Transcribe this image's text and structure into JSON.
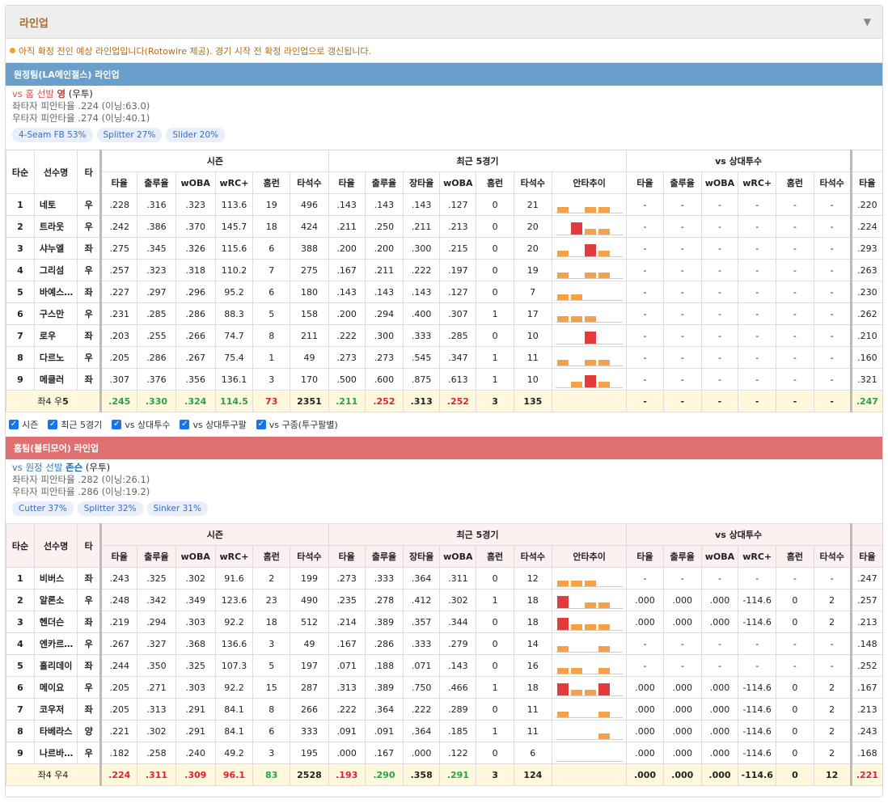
{
  "header": {
    "title": "라인업",
    "caret": "▼"
  },
  "notice": "아직 확정 전인 예상 라인업입니다(Rotowire 제공). 경기 시작 전 확정 라인업으로 갱신됩니다.",
  "columns": {
    "order": "타순",
    "name": "선수명",
    "hand": "타",
    "groups": [
      "시즌",
      "최근 5경기",
      "vs 상대투수"
    ],
    "season": [
      "타율",
      "출루율",
      "wOBA",
      "wRC+",
      "홈런",
      "타석수"
    ],
    "recent": [
      "타율",
      "출루율",
      "장타율",
      "wOBA",
      "홈런",
      "타석수",
      "안타추이"
    ],
    "vs": [
      "타율",
      "출루율",
      "wOBA",
      "wRC+",
      "홈런",
      "타석수"
    ],
    "extra": "타율"
  },
  "away": {
    "bar": "원정팀(LA에인절스) 라인업",
    "vs_label": "vs 홈 선발",
    "pitcher": "영",
    "pitcher_hand": "(우투)",
    "lhb": "좌타자 피안타율 .224 (이닝:63.0)",
    "rhb": "우타자 피안타율 .274 (이닝:40.1)",
    "pitches": [
      "4-Seam FB 53%",
      "Splitter 27%",
      "Slider 20%"
    ],
    "rows": [
      {
        "o": "1",
        "n": "네토",
        "h": "우",
        "s": [
          ".228",
          ".316",
          ".323",
          "113.6",
          "19",
          "496"
        ],
        "r": [
          ".143",
          ".143",
          ".143",
          ".127",
          "0",
          "21"
        ],
        "t": [
          "o",
          "",
          "o",
          "o"
        ],
        "v": [
          "-",
          "-",
          "-",
          "-",
          "-",
          "-"
        ],
        "x": ".220"
      },
      {
        "o": "2",
        "n": "트라웃",
        "h": "우",
        "s": [
          ".242",
          ".386",
          ".370",
          "145.7",
          "18",
          "424"
        ],
        "r": [
          ".211",
          ".250",
          ".211",
          ".213",
          "0",
          "20"
        ],
        "t": [
          "",
          "r",
          "o",
          "o"
        ],
        "v": [
          "-",
          "-",
          "-",
          "-",
          "-",
          "-"
        ],
        "x": ".224"
      },
      {
        "o": "3",
        "n": "샤누엘",
        "h": "좌",
        "s": [
          ".275",
          ".345",
          ".326",
          "115.6",
          "6",
          "388"
        ],
        "r": [
          ".200",
          ".200",
          ".300",
          ".215",
          "0",
          "20"
        ],
        "t": [
          "o",
          "",
          "r",
          "o"
        ],
        "v": [
          "-",
          "-",
          "-",
          "-",
          "-",
          "-"
        ],
        "x": ".293"
      },
      {
        "o": "4",
        "n": "그리섬",
        "h": "우",
        "s": [
          ".257",
          ".323",
          ".318",
          "110.2",
          "7",
          "275"
        ],
        "r": [
          ".167",
          ".211",
          ".222",
          ".197",
          "0",
          "19"
        ],
        "t": [
          "o",
          "",
          "o",
          "o"
        ],
        "v": [
          "-",
          "-",
          "-",
          "-",
          "-",
          "-"
        ],
        "x": ".263"
      },
      {
        "o": "5",
        "n": "바예스테로스",
        "h": "좌",
        "s": [
          ".227",
          ".297",
          ".296",
          "95.2",
          "6",
          "180"
        ],
        "r": [
          ".143",
          ".143",
          ".143",
          ".127",
          "0",
          "7"
        ],
        "t": [
          "o",
          "o",
          "",
          ""
        ],
        "v": [
          "-",
          "-",
          "-",
          "-",
          "-",
          "-"
        ],
        "x": ".230"
      },
      {
        "o": "6",
        "n": "구스만",
        "h": "우",
        "s": [
          ".231",
          ".285",
          ".286",
          "88.3",
          "5",
          "158"
        ],
        "r": [
          ".200",
          ".294",
          ".400",
          ".307",
          "1",
          "17"
        ],
        "t": [
          "o",
          "o",
          "o",
          ""
        ],
        "v": [
          "-",
          "-",
          "-",
          "-",
          "-",
          "-"
        ],
        "x": ".262"
      },
      {
        "o": "7",
        "n": "로우",
        "h": "좌",
        "s": [
          ".203",
          ".255",
          ".266",
          "74.7",
          "8",
          "211"
        ],
        "r": [
          ".222",
          ".300",
          ".333",
          ".285",
          "0",
          "10"
        ],
        "t": [
          "",
          "",
          "r",
          ""
        ],
        "v": [
          "-",
          "-",
          "-",
          "-",
          "-",
          "-"
        ],
        "x": ".210"
      },
      {
        "o": "8",
        "n": "다르노",
        "h": "우",
        "s": [
          ".205",
          ".286",
          ".267",
          "75.4",
          "1",
          "49"
        ],
        "r": [
          ".273",
          ".273",
          ".545",
          ".347",
          "1",
          "11"
        ],
        "t": [
          "o",
          "",
          "o",
          "o"
        ],
        "v": [
          "-",
          "-",
          "-",
          "-",
          "-",
          "-"
        ],
        "x": ".160"
      },
      {
        "o": "9",
        "n": "메클러",
        "h": "좌",
        "s": [
          ".307",
          ".376",
          ".356",
          "136.1",
          "3",
          "170"
        ],
        "r": [
          ".500",
          ".600",
          ".875",
          ".613",
          "1",
          "10"
        ],
        "t": [
          "",
          "o",
          "r",
          "o"
        ],
        "v": [
          "-",
          "-",
          "-",
          "-",
          "-",
          "-"
        ],
        "x": ".321"
      }
    ],
    "sum": {
      "label": "좌4 우",
      "label_b": "5",
      "s": [
        ".245",
        ".330",
        ".324",
        "114.5",
        "73",
        "2351"
      ],
      "sc": [
        "g",
        "g",
        "g",
        "g",
        "r",
        ""
      ],
      "r": [
        ".211",
        ".252",
        ".313",
        ".252",
        "3",
        "135"
      ],
      "rc": [
        "g",
        "r",
        "",
        "r",
        "",
        ""
      ],
      "v": [
        "-",
        "-",
        "-",
        "-",
        "-",
        "-"
      ],
      "x": ".247",
      "xc": "g"
    }
  },
  "checks": [
    "시즌",
    "최근 5경기",
    "vs 상대투수",
    "vs 상대투구팔",
    "vs 구종(투구팔별)"
  ],
  "home": {
    "bar": "홈팀(볼티모어) 라인업",
    "vs_label": "vs 원정 선발",
    "pitcher": "존슨",
    "pitcher_hand": "(우투)",
    "lhb": "좌타자 피안타율 .282 (이닝:26.1)",
    "rhb": "우타자 피안타율 .286 (이닝:19.2)",
    "pitches": [
      "Cutter 37%",
      "Splitter 32%",
      "Sinker 31%"
    ],
    "rows": [
      {
        "o": "1",
        "n": "비버스",
        "h": "좌",
        "s": [
          ".243",
          ".325",
          ".302",
          "91.6",
          "2",
          "199"
        ],
        "r": [
          ".273",
          ".333",
          ".364",
          ".311",
          "0",
          "12"
        ],
        "t": [
          "o",
          "o",
          "o",
          ""
        ],
        "v": [
          "-",
          "-",
          "-",
          "-",
          "-",
          "-"
        ],
        "x": ".247"
      },
      {
        "o": "2",
        "n": "알론소",
        "h": "우",
        "s": [
          ".248",
          ".342",
          ".349",
          "123.6",
          "23",
          "490"
        ],
        "r": [
          ".235",
          ".278",
          ".412",
          ".302",
          "1",
          "18"
        ],
        "t": [
          "r",
          "",
          "o",
          "o"
        ],
        "v": [
          ".000",
          ".000",
          ".000",
          "-114.6",
          "0",
          "2"
        ],
        "x": ".257"
      },
      {
        "o": "3",
        "n": "헨더슨",
        "h": "좌",
        "s": [
          ".219",
          ".294",
          ".303",
          "92.2",
          "18",
          "512"
        ],
        "r": [
          ".214",
          ".389",
          ".357",
          ".344",
          "0",
          "18"
        ],
        "t": [
          "r",
          "o",
          "o",
          "o"
        ],
        "v": [
          ".000",
          ".000",
          ".000",
          "-114.6",
          "0",
          "2"
        ],
        "x": ".213"
      },
      {
        "o": "4",
        "n": "엔카르나시...",
        "h": "우",
        "s": [
          ".267",
          ".327",
          ".368",
          "136.6",
          "3",
          "49"
        ],
        "r": [
          ".167",
          ".286",
          ".333",
          ".279",
          "0",
          "14"
        ],
        "t": [
          "o",
          "",
          "",
          "o"
        ],
        "v": [
          "-",
          "-",
          "-",
          "-",
          "-",
          "-"
        ],
        "x": ".148"
      },
      {
        "o": "5",
        "n": "홀리데이",
        "h": "좌",
        "s": [
          ".244",
          ".350",
          ".325",
          "107.3",
          "5",
          "197"
        ],
        "r": [
          ".071",
          ".188",
          ".071",
          ".143",
          "0",
          "16"
        ],
        "t": [
          "o",
          "o",
          "",
          "o"
        ],
        "v": [
          "-",
          "-",
          "-",
          "-",
          "-",
          "-"
        ],
        "x": ".252"
      },
      {
        "o": "6",
        "n": "메이요",
        "h": "우",
        "s": [
          ".205",
          ".271",
          ".303",
          "92.2",
          "15",
          "287"
        ],
        "r": [
          ".313",
          ".389",
          ".750",
          ".466",
          "1",
          "18"
        ],
        "t": [
          "r",
          "o",
          "o",
          "r"
        ],
        "v": [
          ".000",
          ".000",
          ".000",
          "-114.6",
          "0",
          "2"
        ],
        "x": ".167"
      },
      {
        "o": "7",
        "n": "코우저",
        "h": "좌",
        "s": [
          ".205",
          ".313",
          ".291",
          "84.1",
          "8",
          "266"
        ],
        "r": [
          ".222",
          ".364",
          ".222",
          ".289",
          "0",
          "11"
        ],
        "t": [
          "o",
          "",
          "",
          "o"
        ],
        "v": [
          ".000",
          ".000",
          ".000",
          "-114.6",
          "0",
          "2"
        ],
        "x": ".213"
      },
      {
        "o": "8",
        "n": "타베라스",
        "h": "양",
        "s": [
          ".221",
          ".302",
          ".291",
          "84.1",
          "6",
          "333"
        ],
        "r": [
          ".091",
          ".091",
          ".364",
          ".185",
          "1",
          "11"
        ],
        "t": [
          "",
          "",
          "",
          "o"
        ],
        "v": [
          ".000",
          ".000",
          ".000",
          "-114.6",
          "0",
          "2"
        ],
        "x": ".243"
      },
      {
        "o": "9",
        "n": "나르바에스",
        "h": "우",
        "s": [
          ".182",
          ".258",
          ".240",
          "49.2",
          "3",
          "195"
        ],
        "r": [
          ".000",
          ".167",
          ".000",
          ".122",
          "0",
          "6"
        ],
        "t": [
          "",
          "",
          "",
          ""
        ],
        "v": [
          ".000",
          ".000",
          ".000",
          "-114.6",
          "0",
          "2"
        ],
        "x": ".168"
      }
    ],
    "sum": {
      "label": "좌4 우4",
      "label_b": "",
      "s": [
        ".224",
        ".311",
        ".309",
        "96.1",
        "83",
        "2528"
      ],
      "sc": [
        "r",
        "r",
        "r",
        "r",
        "g",
        ""
      ],
      "r": [
        ".193",
        ".290",
        ".358",
        ".291",
        "3",
        "124"
      ],
      "rc": [
        "r",
        "g",
        "",
        "g",
        "",
        ""
      ],
      "v": [
        ".000",
        ".000",
        ".000",
        "-114.6",
        "0",
        "12"
      ],
      "x": ".221",
      "xc": "r"
    }
  },
  "colors": {
    "accent": "#b36b12",
    "away_bar": "#6a9fcc",
    "home_bar": "#e07070",
    "good": "#22a34a",
    "bad": "#d23"
  }
}
